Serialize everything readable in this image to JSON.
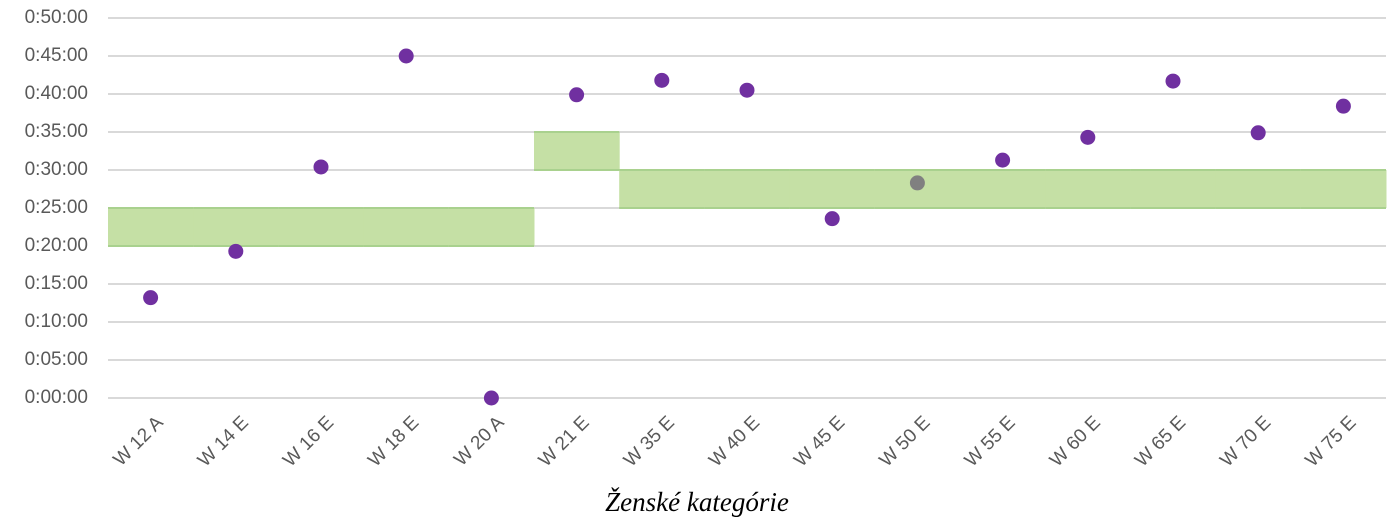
{
  "chart_data": {
    "type": "scatter",
    "x_label": "Ženské kategórie",
    "categories": [
      "W 12 A",
      "W 14 E",
      "W 16 E",
      "W 18 E",
      "W 20 A",
      "W 21 E",
      "W 35 E",
      "W 40 E",
      "W 45 E",
      "W 50 E",
      "W 55 E",
      "W 60 E",
      "W 65 E",
      "W 70 E",
      "W 75 E"
    ],
    "values": [
      13.2,
      19.3,
      30.4,
      45.0,
      0,
      39.9,
      41.8,
      40.5,
      23.6,
      28.3,
      31.3,
      34.3,
      41.7,
      34.9,
      38.4
    ],
    "colors": [
      "#7030a0",
      "#7030a0",
      "#7030a0",
      "#7030a0",
      "#7030a0",
      "#7030a0",
      "#7030a0",
      "#7030a0",
      "#7030a0",
      "#808080",
      "#7030a0",
      "#7030a0",
      "#7030a0",
      "#7030a0",
      "#7030a0"
    ],
    "band_low": [
      20,
      20,
      20,
      20,
      20,
      30,
      25,
      25,
      25,
      25,
      25,
      25,
      25,
      25,
      25
    ],
    "band_high": [
      25,
      25,
      25,
      25,
      25,
      35,
      30,
      30,
      30,
      30,
      30,
      30,
      30,
      30,
      30
    ],
    "band_color": "#c5e0a5",
    "band_edge_color": "#a9d18e",
    "ylim": [
      0,
      50
    ],
    "yticks": [
      {
        "value": 0,
        "label": "0:00:00"
      },
      {
        "value": 5,
        "label": "0:05:00"
      },
      {
        "value": 10,
        "label": "0:10:00"
      },
      {
        "value": 15,
        "label": "0:15:00"
      },
      {
        "value": 20,
        "label": "0:20:00"
      },
      {
        "value": 25,
        "label": "0:25:00"
      },
      {
        "value": 30,
        "label": "0:30:00"
      },
      {
        "value": 35,
        "label": "0:35:00"
      },
      {
        "value": 40,
        "label": "0:40:00"
      },
      {
        "value": 45,
        "label": "0:45:00"
      },
      {
        "value": 50,
        "label": "0:50:00"
      }
    ],
    "grid": true
  }
}
